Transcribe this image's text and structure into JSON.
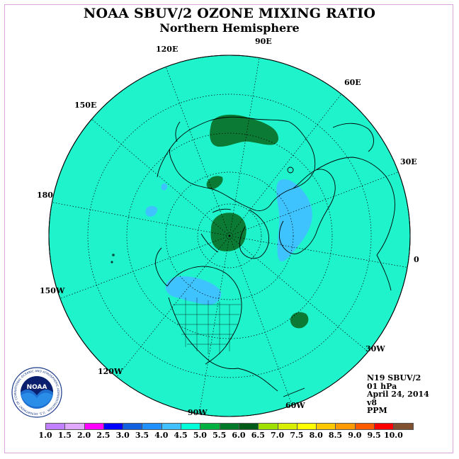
{
  "title": "NOAA SBUV/2 OZONE MIXING RATIO",
  "subtitle": "Northern Hemisphere",
  "longitude_labels": {
    "lon_90e": "90E",
    "lon_120e": "120E",
    "lon_60e": "60E",
    "lon_150e": "150E",
    "lon_30e": "30E",
    "lon_180": "180",
    "lon_0": "0",
    "lon_150w": "150W",
    "lon_30w": "30W",
    "lon_120w": "120W",
    "lon_60w": "60W",
    "lon_90w": "90W"
  },
  "info": {
    "satellite": "N19 SBUV/2",
    "level": "01 hPa",
    "date": "April 24, 2014",
    "version": "v8",
    "units": "PPM"
  },
  "logo": {
    "text": "NOAA",
    "ring_text": "NATIONAL OCEANIC AND ATMOSPHERIC ADMINISTRATION · U.S. DEPARTMENT OF COMMERCE"
  },
  "colorbar": {
    "ticks": [
      "1.0",
      "1.5",
      "2.0",
      "2.5",
      "3.0",
      "3.5",
      "4.0",
      "4.5",
      "5.0",
      "5.5",
      "6.0",
      "6.5",
      "7.0",
      "7.5",
      "8.0",
      "8.5",
      "9.0",
      "9.5",
      "10.0"
    ],
    "colors": [
      "#c080ff",
      "#e0a8ff",
      "#ff00ff",
      "#0000ff",
      "#1060e0",
      "#2090ff",
      "#40c0ff",
      "#00ffd8",
      "#00b040",
      "#007a28",
      "#005a18",
      "#a0e000",
      "#d8f000",
      "#ffff00",
      "#ffc800",
      "#ff9a00",
      "#ff5a00",
      "#ff0000",
      "#805030"
    ]
  },
  "colors": {
    "background_ozone": "#1ef3cc",
    "high_ozone": "#0b7a34",
    "low_ozone": "#3fc3ff"
  }
}
